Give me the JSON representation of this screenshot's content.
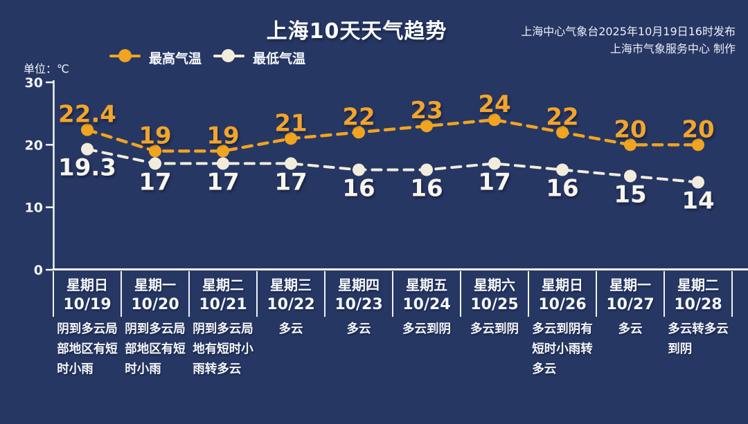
{
  "header": {
    "source_line1": "上海中心气象台2025年10月19日16时发布",
    "source_line2": "上海市气象服务中心 制作"
  },
  "chart_data": {
    "type": "line",
    "title": "上海10天天气趋势",
    "unit_label": "单位：℃",
    "ylim": [
      0,
      30
    ],
    "yticks": [
      0,
      10,
      20,
      30
    ],
    "grid": false,
    "legend_position": "top-left",
    "line_style": "dashed",
    "colors": {
      "background": "#273763",
      "axis": "#F3F5F8",
      "high": "#F0A41F",
      "low": "#F2ECDC"
    },
    "categories": [
      "10/19",
      "10/20",
      "10/21",
      "10/22",
      "10/23",
      "10/24",
      "10/25",
      "10/26",
      "10/27",
      "10/28"
    ],
    "weekdays": [
      "星期日",
      "星期一",
      "星期二",
      "星期三",
      "星期四",
      "星期五",
      "星期六",
      "星期日",
      "星期一",
      "星期二"
    ],
    "series": [
      {
        "name": "最高气温",
        "color": "#F0A41F",
        "values": [
          22.4,
          19,
          19,
          21,
          22,
          23,
          24,
          22,
          20,
          20
        ],
        "point_labels": [
          "22.4",
          "19",
          "19",
          "21",
          "22",
          "23",
          "24",
          "22",
          "20",
          "20"
        ]
      },
      {
        "name": "最低气温",
        "color": "#F2ECDC",
        "values": [
          19.3,
          17,
          17,
          17,
          16,
          16,
          17,
          16,
          15,
          14
        ],
        "point_labels": [
          "19.3",
          "17",
          "17",
          "17",
          "16",
          "16",
          "17",
          "16",
          "15",
          "14"
        ]
      }
    ],
    "days": [
      {
        "weekday": "星期日",
        "date": "10/19",
        "desc_lines": [
          "阴到多云局",
          "部地区有短",
          "时小雨"
        ]
      },
      {
        "weekday": "星期一",
        "date": "10/20",
        "desc_lines": [
          "阴到多云局",
          "部地区有短",
          "时小雨"
        ]
      },
      {
        "weekday": "星期二",
        "date": "10/21",
        "desc_lines": [
          "阴到多云局",
          "地有短时小",
          "雨转多云"
        ]
      },
      {
        "weekday": "星期三",
        "date": "10/22",
        "desc_lines": [
          "多云"
        ]
      },
      {
        "weekday": "星期四",
        "date": "10/23",
        "desc_lines": [
          "多云"
        ]
      },
      {
        "weekday": "星期五",
        "date": "10/24",
        "desc_lines": [
          "多云到阴"
        ]
      },
      {
        "weekday": "星期六",
        "date": "10/25",
        "desc_lines": [
          "多云到阴"
        ]
      },
      {
        "weekday": "星期日",
        "date": "10/26",
        "desc_lines": [
          "多云到阴有",
          "短时小雨转",
          "多云"
        ]
      },
      {
        "weekday": "星期一",
        "date": "10/27",
        "desc_lines": [
          "多云"
        ]
      },
      {
        "weekday": "星期二",
        "date": "10/28",
        "desc_lines": [
          "多云转多云",
          "到阴"
        ]
      }
    ]
  }
}
